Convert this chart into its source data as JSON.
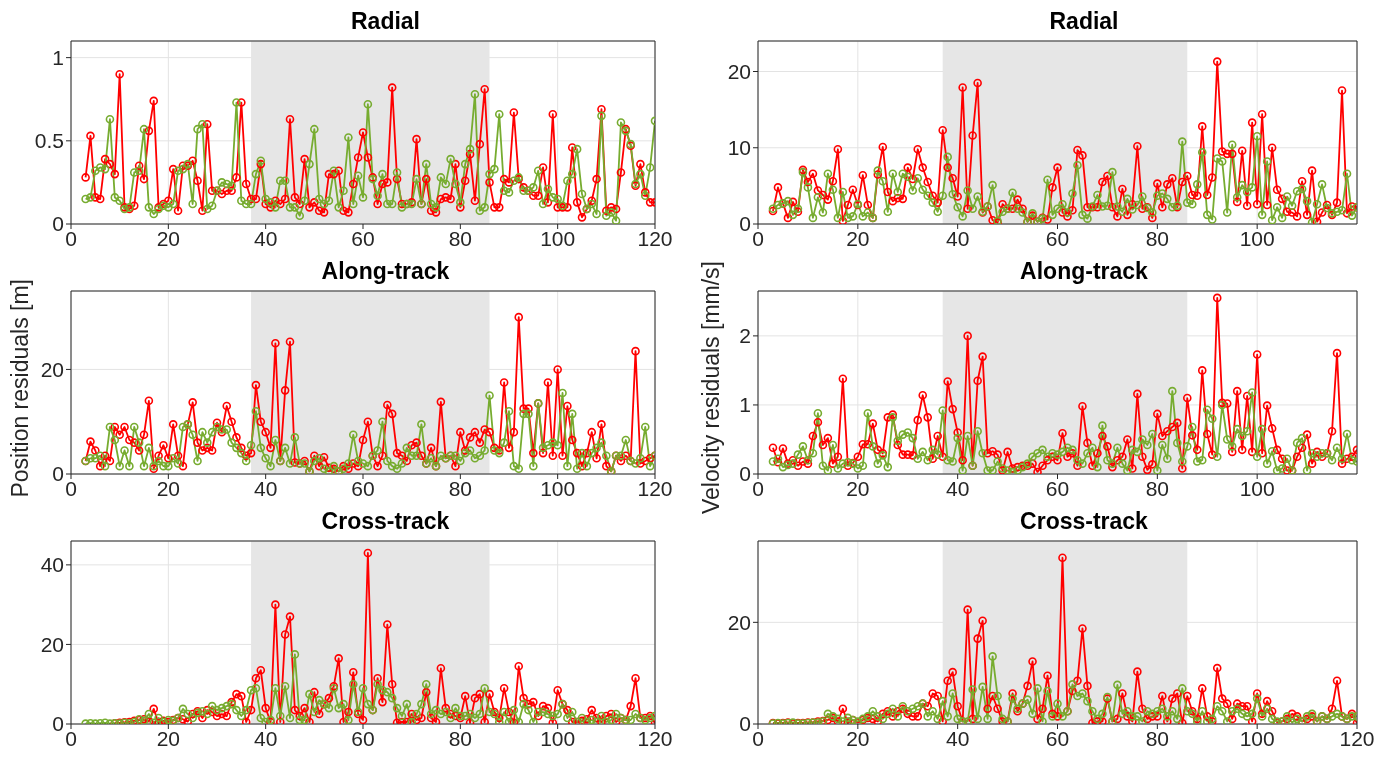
{
  "chart_data": [
    {
      "type": "line",
      "title": "Radial",
      "grid": true,
      "marker": "circle",
      "xlim": [
        0,
        120
      ],
      "xticks": [
        0,
        20,
        40,
        60,
        80,
        100,
        120
      ],
      "ylim": [
        0,
        1.1
      ],
      "yticks": [
        0,
        0.5,
        1
      ],
      "bands": [
        {
          "axis": "x",
          "from": 37,
          "to": 86,
          "color": "#e6e6e6"
        }
      ],
      "x": [
        3,
        4,
        5,
        6,
        7,
        8,
        9,
        10,
        11,
        12,
        13,
        14,
        15,
        16,
        17,
        18,
        19,
        20,
        21,
        22,
        23,
        24,
        25,
        26,
        27,
        28,
        29,
        30,
        31,
        32,
        33,
        34,
        35,
        36,
        37,
        38,
        39,
        40,
        41,
        42,
        43,
        44,
        45,
        46,
        47,
        48,
        49,
        50,
        51,
        52,
        53,
        54,
        55,
        56,
        57,
        58,
        59,
        60,
        61,
        62,
        63,
        64,
        65,
        66,
        67,
        68,
        69,
        70,
        71,
        72,
        73,
        74,
        75,
        76,
        77,
        78,
        79,
        80,
        81,
        82,
        83,
        84,
        85,
        86,
        87,
        88,
        89,
        90,
        91,
        92,
        93,
        94,
        95,
        96,
        97,
        98,
        99,
        100,
        101,
        102,
        103,
        104,
        105,
        106,
        107,
        108,
        109,
        110,
        111,
        112,
        113,
        114,
        115,
        116,
        117,
        118,
        119,
        120
      ],
      "series": [
        {
          "color": "#ff0000",
          "values": [
            0.28,
            0.53,
            0.16,
            0.15,
            0.39,
            0.36,
            0.3,
            0.9,
            0.1,
            0.09,
            0.11,
            0.35,
            0.27,
            0.56,
            0.74,
            0.1,
            0.12,
            0.14,
            0.33,
            0.08,
            0.35,
            0.35,
            0.38,
            0.26,
            0.08,
            0.6,
            0.2,
            0.2,
            0.18,
            0.2,
            0.2,
            0.28,
            0.73,
            0.24,
            0.15,
            0.15,
            0.36,
            0.12,
            0.1,
            0.14,
            0.12,
            0.15,
            0.63,
            0.16,
            0.12,
            0.39,
            0.1,
            0.13,
            0.08,
            0.07,
            0.3,
            0.3,
            0.32,
            0.08,
            0.07,
            0.24,
            0.4,
            0.55,
            0.4,
            0.28,
            0.12,
            0.24,
            0.25,
            0.82,
            0.27,
            0.12,
            0.12,
            0.13,
            0.51,
            0.12,
            0.27,
            0.08,
            0.07,
            0.15,
            0.16,
            0.15,
            0.36,
            0.1,
            0.26,
            0.42,
            0.14,
            0.48,
            0.81,
            0.25,
            0.1,
            0.1,
            0.27,
            0.25,
            0.67,
            0.27,
            0.22,
            0.2,
            0.17,
            0.17,
            0.34,
            0.13,
            0.66,
            0.1,
            0.1,
            0.1,
            0.46,
            0.13,
            0.04,
            0.09,
            0.14,
            0.27,
            0.69,
            0.08,
            0.1,
            0.09,
            0.31,
            0.57,
            0.47,
            0.23,
            0.36,
            0.19,
            0.13,
            0.13
          ]
        },
        {
          "color": "#77ac30",
          "values": [
            0.15,
            0.16,
            0.32,
            0.34,
            0.33,
            0.63,
            0.16,
            0.14,
            0.09,
            0.1,
            0.31,
            0.32,
            0.57,
            0.1,
            0.06,
            0.09,
            0.11,
            0.1,
            0.12,
            0.32,
            0.33,
            0.36,
            0.12,
            0.57,
            0.6,
            0.09,
            0.11,
            0.2,
            0.25,
            0.24,
            0.23,
            0.73,
            0.14,
            0.12,
            0.12,
            0.3,
            0.38,
            0.15,
            0.13,
            0.1,
            0.26,
            0.26,
            0.1,
            0.1,
            0.05,
            0.14,
            0.36,
            0.57,
            0.15,
            0.12,
            0.14,
            0.32,
            0.1,
            0.2,
            0.52,
            0.12,
            0.29,
            0.16,
            0.72,
            0.27,
            0.17,
            0.3,
            0.12,
            0.12,
            0.31,
            0.1,
            0.12,
            0.12,
            0.27,
            0.12,
            0.36,
            0.12,
            0.1,
            0.28,
            0.24,
            0.39,
            0.24,
            0.13,
            0.36,
            0.45,
            0.78,
            0.08,
            0.1,
            0.3,
            0.33,
            0.66,
            0.2,
            0.19,
            0.26,
            0.28,
            0.2,
            0.2,
            0.22,
            0.32,
            0.12,
            0.21,
            0.16,
            0.15,
            0.11,
            0.26,
            0.3,
            0.45,
            0.18,
            0.09,
            0.12,
            0.06,
            0.65,
            0.05,
            0.07,
            0.02,
            0.61,
            0.56,
            0.48,
            0.24,
            0.3,
            0.17,
            0.34,
            0.62
          ]
        }
      ]
    },
    {
      "type": "line",
      "title": "Radial",
      "grid": true,
      "marker": "circle",
      "xlim": [
        0,
        120
      ],
      "xticks": [
        0,
        20,
        40,
        60,
        80,
        100
      ],
      "ylim": [
        0,
        24
      ],
      "yticks": [
        0,
        10,
        20
      ],
      "bands": [
        {
          "axis": "x",
          "from": 37,
          "to": 86,
          "color": "#e6e6e6"
        }
      ],
      "x": [
        3,
        4,
        5,
        6,
        7,
        8,
        9,
        10,
        11,
        12,
        13,
        14,
        15,
        16,
        17,
        18,
        19,
        20,
        21,
        22,
        23,
        24,
        25,
        26,
        27,
        28,
        29,
        30,
        31,
        32,
        33,
        34,
        35,
        36,
        37,
        38,
        39,
        40,
        41,
        42,
        43,
        44,
        45,
        46,
        47,
        48,
        49,
        50,
        51,
        52,
        53,
        54,
        55,
        56,
        57,
        58,
        59,
        60,
        61,
        62,
        63,
        64,
        65,
        66,
        67,
        68,
        69,
        70,
        71,
        72,
        73,
        74,
        75,
        76,
        77,
        78,
        79,
        80,
        81,
        82,
        83,
        84,
        85,
        86,
        87,
        88,
        89,
        90,
        91,
        92,
        93,
        94,
        95,
        96,
        97,
        98,
        99,
        100,
        101,
        102,
        103,
        104,
        105,
        106,
        107,
        108,
        109,
        110,
        111,
        112,
        113,
        114,
        115,
        116,
        117,
        118,
        119,
        120
      ],
      "series": [
        {
          "color": "#ff0000",
          "values": [
            1.7,
            4.8,
            2.7,
            0.8,
            2.9,
            1.6,
            7.1,
            5.5,
            6.6,
            4.4,
            3.8,
            3.2,
            5.6,
            9.8,
            0.4,
            2.5,
            4.5,
            2.5,
            6.4,
            2.5,
            0.8,
            6.5,
            10.1,
            4.2,
            3.0,
            3.4,
            3.3,
            7.4,
            5.9,
            9.8,
            7.4,
            5.5,
            3.7,
            2.8,
            12.3,
            7.4,
            6.0,
            3.6,
            17.9,
            2.0,
            11.6,
            18.5,
            1.5,
            2.3,
            0.5,
            0.2,
            2.6,
            2.0,
            2.0,
            3.2,
            2.0,
            0.3,
            1.1,
            0.3,
            0.8,
            0.6,
            4.8,
            7.4,
            1.5,
            1.0,
            1.8,
            9.7,
            9.0,
            2.2,
            2.2,
            2.2,
            5.5,
            6.3,
            2.2,
            1.0,
            4.6,
            1.2,
            2.6,
            10.2,
            2.0,
            2.2,
            0.8,
            5.3,
            2.2,
            5.2,
            6.0,
            2.2,
            5.5,
            6.3,
            3.8,
            3.7,
            12.8,
            3.8,
            6.1,
            21.3,
            9.5,
            9.2,
            9.2,
            2.9,
            9.6,
            2.4,
            13.3,
            2.6,
            14.4,
            2.5,
            10.0,
            4.5,
            3.3,
            1.6,
            1.5,
            1.0,
            5.6,
            1.2,
            7.0,
            0.3,
            1.5,
            2.5,
            1.2,
            2.8,
            17.5,
            1.4,
            2.3,
            2.2
          ]
        },
        {
          "color": "#77ac30",
          "values": [
            2.0,
            2.5,
            2.7,
            3.0,
            1.2,
            2.0,
            6.8,
            4.8,
            0.8,
            3.5,
            1.5,
            6.6,
            4.5,
            0.8,
            4.2,
            0.8,
            1.0,
            2.6,
            1.0,
            1.5,
            0.8,
            7.0,
            5.6,
            1.6,
            6.6,
            4.2,
            6.6,
            6.2,
            4.4,
            6.0,
            4.5,
            3.7,
            2.8,
            1.6,
            3.7,
            8.8,
            3.9,
            2.2,
            1.0,
            4.4,
            2.0,
            3.6,
            1.6,
            2.3,
            5.1,
            0.4,
            1.6,
            2.0,
            4.1,
            2.0,
            1.5,
            0.3,
            1.4,
            0.3,
            0.7,
            5.8,
            1.2,
            2.0,
            2.6,
            1.5,
            4.0,
            7.7,
            1.2,
            0.7,
            2.3,
            3.8,
            2.3,
            2.4,
            6.8,
            2.3,
            1.6,
            3.3,
            1.9,
            2.5,
            3.6,
            2.1,
            1.5,
            3.7,
            4.0,
            3.3,
            2.2,
            2.4,
            10.8,
            2.8,
            2.6,
            5.2,
            9.4,
            1.2,
            0.6,
            8.6,
            8.2,
            1.5,
            10.4,
            3.5,
            5.1,
            4.2,
            4.8,
            11.5,
            1.2,
            8.2,
            0.5,
            2.2,
            0.8,
            3.6,
            2.4,
            4.3,
            4.6,
            3.0,
            0.2,
            2.6,
            5.2,
            2.1,
            1.4,
            1.6,
            1.8,
            6.6,
            1.1,
            2.2
          ]
        }
      ]
    },
    {
      "type": "line",
      "title": "Along-track",
      "ylabel": "Position residuals [m]",
      "grid": true,
      "marker": "circle",
      "xlim": [
        0,
        120
      ],
      "xticks": [
        0,
        20,
        40,
        60,
        80,
        100,
        120
      ],
      "ylim": [
        0,
        35
      ],
      "yticks": [
        0,
        20
      ],
      "bands": [
        {
          "axis": "x",
          "from": 37,
          "to": 86,
          "color": "#e6e6e6"
        }
      ],
      "x": [
        3,
        4,
        5,
        6,
        7,
        8,
        9,
        10,
        11,
        12,
        13,
        14,
        15,
        16,
        17,
        18,
        19,
        20,
        21,
        22,
        23,
        24,
        25,
        26,
        27,
        28,
        29,
        30,
        31,
        32,
        33,
        34,
        35,
        36,
        37,
        38,
        39,
        40,
        41,
        42,
        43,
        44,
        45,
        46,
        47,
        48,
        49,
        50,
        51,
        52,
        53,
        54,
        55,
        56,
        57,
        58,
        59,
        60,
        61,
        62,
        63,
        64,
        65,
        66,
        67,
        68,
        69,
        70,
        71,
        72,
        73,
        74,
        75,
        76,
        77,
        78,
        79,
        80,
        81,
        82,
        83,
        84,
        85,
        86,
        87,
        88,
        89,
        90,
        91,
        92,
        93,
        94,
        95,
        96,
        97,
        98,
        99,
        100,
        101,
        102,
        103,
        104,
        105,
        106,
        107,
        108,
        109,
        110,
        111,
        112,
        113,
        114,
        115,
        116,
        117,
        118,
        119,
        120
      ],
      "series": [
        {
          "color": "#ff0000",
          "values": [
            2.5,
            6.2,
            4.5,
            1.5,
            3.5,
            2.5,
            9.0,
            7.5,
            9.0,
            6.5,
            6.0,
            4.5,
            7.5,
            14.0,
            1.0,
            3.5,
            5.5,
            3.0,
            9.5,
            3.5,
            1.5,
            9.5,
            13.7,
            6.0,
            4.5,
            5.0,
            4.5,
            9.8,
            8.0,
            13.0,
            10.0,
            7.0,
            5.0,
            3.5,
            4.0,
            17.0,
            10.0,
            8.0,
            5.0,
            25.0,
            2.5,
            16.0,
            25.3,
            2.2,
            2.0,
            2.5,
            0.5,
            3.5,
            1.5,
            3.2,
            1.2,
            1.0,
            0.5,
            1.5,
            1.0,
            2.0,
            1.5,
            6.5,
            10.0,
            3.5,
            1.5,
            3.5,
            13.2,
            11.5,
            4.0,
            3.5,
            2.5,
            5.5,
            6.0,
            3.5,
            2.0,
            5.0,
            1.5,
            13.8,
            3.0,
            3.5,
            1.5,
            8.0,
            4.5,
            7.0,
            8.0,
            6.0,
            8.5,
            8.0,
            5.0,
            4.5,
            17.5,
            5.0,
            8.0,
            30.0,
            12.5,
            12.5,
            4.0,
            13.5,
            4.0,
            17.5,
            3.5,
            20.0,
            3.5,
            13.0,
            6.5,
            4.0,
            1.5,
            4.0,
            8.0,
            3.0,
            9.5,
            1.5,
            0.5,
            3.5,
            2.5,
            3.5,
            2.5,
            23.5,
            2.0,
            2.5,
            3.0,
            3.5
          ]
        },
        {
          "color": "#77ac30",
          "values": [
            2.5,
            3.0,
            3.0,
            3.5,
            1.5,
            9.0,
            6.5,
            1.5,
            4.5,
            1.5,
            9.0,
            6.0,
            1.5,
            5.0,
            1.5,
            2.5,
            1.5,
            1.5,
            3.0,
            2.0,
            9.0,
            9.5,
            7.5,
            2.5,
            8.0,
            6.0,
            8.0,
            9.0,
            8.5,
            8.5,
            6.0,
            5.0,
            4.0,
            2.5,
            5.5,
            12.0,
            5.0,
            3.0,
            1.5,
            6.5,
            2.5,
            5.0,
            2.0,
            7.0,
            2.0,
            2.0,
            0.5,
            2.5,
            3.0,
            1.0,
            0.5,
            1.5,
            0.5,
            1.0,
            2.0,
            7.5,
            2.5,
            2.0,
            1.5,
            3.5,
            4.5,
            10.0,
            2.5,
            1.5,
            1.0,
            2.0,
            5.0,
            3.5,
            3.5,
            9.5,
            2.0,
            3.0,
            1.5,
            3.5,
            3.0,
            3.5,
            3.5,
            2.5,
            4.0,
            4.5,
            3.0,
            3.5,
            4.5,
            15.0,
            4.5,
            4.0,
            6.0,
            12.0,
            1.5,
            1.0,
            11.5,
            11.5,
            1.5,
            13.5,
            5.0,
            5.5,
            6.0,
            5.5,
            15.5,
            1.5,
            11.5,
            1.0,
            4.0,
            1.5,
            4.0,
            5.0,
            6.0,
            3.5,
            0.5,
            3.5,
            3.5,
            6.5,
            2.5,
            2.0,
            3.0,
            9.0,
            1.5,
            3.5
          ]
        }
      ]
    },
    {
      "type": "line",
      "title": "Along-track",
      "ylabel": "Velocity residuals [mm/s]",
      "grid": true,
      "marker": "circle",
      "xlim": [
        0,
        120
      ],
      "xticks": [
        0,
        20,
        40,
        60,
        80,
        100
      ],
      "ylim": [
        0,
        2.65
      ],
      "yticks": [
        0,
        1,
        2
      ],
      "bands": [
        {
          "axis": "x",
          "from": 37,
          "to": 86,
          "color": "#e6e6e6"
        }
      ],
      "x": [
        3,
        4,
        5,
        6,
        7,
        8,
        9,
        10,
        11,
        12,
        13,
        14,
        15,
        16,
        17,
        18,
        19,
        20,
        21,
        22,
        23,
        24,
        25,
        26,
        27,
        28,
        29,
        30,
        31,
        32,
        33,
        34,
        35,
        36,
        37,
        38,
        39,
        40,
        41,
        42,
        43,
        44,
        45,
        46,
        47,
        48,
        49,
        50,
        51,
        52,
        53,
        54,
        55,
        56,
        57,
        58,
        59,
        60,
        61,
        62,
        63,
        64,
        65,
        66,
        67,
        68,
        69,
        70,
        71,
        72,
        73,
        74,
        75,
        76,
        77,
        78,
        79,
        80,
        81,
        82,
        83,
        84,
        85,
        86,
        87,
        88,
        89,
        90,
        91,
        92,
        93,
        94,
        95,
        96,
        97,
        98,
        99,
        100,
        101,
        102,
        103,
        104,
        105,
        106,
        107,
        108,
        109,
        110,
        111,
        112,
        113,
        114,
        115,
        116,
        117,
        118,
        119,
        120
      ],
      "series": [
        {
          "color": "#ff0000",
          "values": [
            0.38,
            0.17,
            0.37,
            0.15,
            0.2,
            0.12,
            0.18,
            0.15,
            0.55,
            0.75,
            0.42,
            0.52,
            0.15,
            0.25,
            1.38,
            0.12,
            0.16,
            0.25,
            0.43,
            0.43,
            0.73,
            0.35,
            0.3,
            0.82,
            0.86,
            0.42,
            0.28,
            0.28,
            0.27,
            0.78,
            1.14,
            0.82,
            0.22,
            0.55,
            0.25,
            1.34,
            0.94,
            0.6,
            0.2,
            2.0,
            0.12,
            1.35,
            1.7,
            0.3,
            0.33,
            0.28,
            0.05,
            0.32,
            0.08,
            0.1,
            0.12,
            0.12,
            0.15,
            0.03,
            0.12,
            0.2,
            0.25,
            0.2,
            0.59,
            0.25,
            0.3,
            0.12,
            0.98,
            0.45,
            0.12,
            0.3,
            0.55,
            0.4,
            0.1,
            0.2,
            0.25,
            0.5,
            0.08,
            1.16,
            0.25,
            0.06,
            0.14,
            0.87,
            0.55,
            0.62,
            0.68,
            0.74,
            0.08,
            1.1,
            0.56,
            0.35,
            1.5,
            0.58,
            0.28,
            2.55,
            1.03,
            1.02,
            0.32,
            1.2,
            0.35,
            1.13,
            0.32,
            1.73,
            0.3,
            0.99,
            0.66,
            0.35,
            0.22,
            0.05,
            0.05,
            0.25,
            0.38,
            0.57,
            0.15,
            0.32,
            0.25,
            0.3,
            0.62,
            1.75,
            0.15,
            0.22,
            0.25,
            0.35
          ]
        },
        {
          "color": "#77ac30",
          "values": [
            0.18,
            0.22,
            0.1,
            0.13,
            0.15,
            0.28,
            0.4,
            0.2,
            0.3,
            0.88,
            0.12,
            0.05,
            0.42,
            0.08,
            0.15,
            0.17,
            0.15,
            0.08,
            0.12,
            0.88,
            0.4,
            0.15,
            0.27,
            0.1,
            0.82,
            0.48,
            0.57,
            0.6,
            0.52,
            0.22,
            0.32,
            0.2,
            0.35,
            0.28,
            0.92,
            0.2,
            0.18,
            0.52,
            0.05,
            0.55,
            0.12,
            0.62,
            0.3,
            0.05,
            0.05,
            0.18,
            0.08,
            0.05,
            0.03,
            0.05,
            0.1,
            0.15,
            0.25,
            0.3,
            0.35,
            0.25,
            0.3,
            0.28,
            0.32,
            0.38,
            0.35,
            0.2,
            0.15,
            0.3,
            0.38,
            0.1,
            0.7,
            0.2,
            0.15,
            0.38,
            0.15,
            0.05,
            0.35,
            0.32,
            0.5,
            0.42,
            0.58,
            0.05,
            0.42,
            0.22,
            1.2,
            0.45,
            0.18,
            0.4,
            0.68,
            0.18,
            0.2,
            0.93,
            0.8,
            0.25,
            1.0,
            0.5,
            0.4,
            0.65,
            0.55,
            0.62,
            1.18,
            0.25,
            0.65,
            0.15,
            0.33,
            0.05,
            0.08,
            0.22,
            0.05,
            0.45,
            0.52,
            0.05,
            0.3,
            0.25,
            0.3,
            0.3,
            0.2,
            0.38,
            0.22,
            0.58,
            0.2,
            0.18
          ]
        }
      ]
    },
    {
      "type": "line",
      "title": "Cross-track",
      "grid": true,
      "marker": "circle",
      "xlim": [
        0,
        120
      ],
      "xticks": [
        0,
        20,
        40,
        60,
        80,
        100,
        120
      ],
      "ylim": [
        0,
        46
      ],
      "yticks": [
        0,
        20,
        40
      ],
      "bands": [
        {
          "axis": "x",
          "from": 37,
          "to": 86,
          "color": "#e6e6e6"
        }
      ],
      "x": [
        3,
        4,
        5,
        6,
        7,
        8,
        9,
        10,
        11,
        12,
        13,
        14,
        15,
        16,
        17,
        18,
        19,
        20,
        21,
        22,
        23,
        24,
        25,
        26,
        27,
        28,
        29,
        30,
        31,
        32,
        33,
        34,
        35,
        36,
        37,
        38,
        39,
        40,
        41,
        42,
        43,
        44,
        45,
        46,
        47,
        48,
        49,
        50,
        51,
        52,
        53,
        54,
        55,
        56,
        57,
        58,
        59,
        60,
        61,
        62,
        63,
        64,
        65,
        66,
        67,
        68,
        69,
        70,
        71,
        72,
        73,
        74,
        75,
        76,
        77,
        78,
        79,
        80,
        81,
        82,
        83,
        84,
        85,
        86,
        87,
        88,
        89,
        90,
        91,
        92,
        93,
        94,
        95,
        96,
        97,
        98,
        99,
        100,
        101,
        102,
        103,
        104,
        105,
        106,
        107,
        108,
        109,
        110,
        111,
        112,
        113,
        114,
        115,
        116,
        117,
        118,
        119,
        120
      ],
      "series": [
        {
          "color": "#ff0000",
          "values": [
            null,
            null,
            null,
            null,
            null,
            null,
            0.2,
            0.3,
            0.4,
            0.5,
            0.8,
            1,
            1.2,
            0.6,
            3.8,
            0.2,
            0.8,
            0.5,
            1,
            1.5,
            1.2,
            0.6,
            2.5,
            3.2,
            1.5,
            3.5,
            3,
            2,
            2.5,
            2,
            5.5,
            7.5,
            7,
            0.5,
            3.5,
            11.5,
            13.5,
            4,
            0.5,
            30,
            0.5,
            22.5,
            27,
            3.5,
            2,
            4,
            0.5,
            8,
            2.5,
            5,
            6.5,
            9.5,
            16.5,
            0.5,
            3,
            13,
            2.5,
            1,
            43,
            3.5,
            11.5,
            5.5,
            25,
            10,
            0.3,
            0.5,
            0.5,
            2.5,
            1,
            1.5,
            8,
            1.5,
            0.5,
            14,
            4,
            2.5,
            2,
            1.5,
            7,
            0.3,
            6.5,
            7.5,
            0.5,
            7.5,
            3,
            1.5,
            9,
            3,
            0.3,
            14.5,
            6.5,
            5,
            5.5,
            2,
            4.5,
            4,
            0.3,
            8.5,
            5,
            3.5,
            0.5,
            0.5,
            0.8,
            1.2,
            3.5,
            1.5,
            0.5,
            2,
            2.5,
            0.5,
            1.5,
            1,
            4.5,
            11.5,
            1.5,
            1.5,
            2,
            0.2
          ]
        },
        {
          "color": "#77ac30",
          "values": [
            0.1,
            0.2,
            0.1,
            0.2,
            0.3,
            0.1,
            0.2,
            0.1,
            0.3,
            0.2,
            0.5,
            1.2,
            0.8,
            2.5,
            0.3,
            1.5,
            0.5,
            1,
            0.8,
            1.5,
            3.8,
            2.5,
            1.5,
            2.8,
            3.2,
            2.5,
            4.5,
            3.5,
            4,
            4.5,
            5,
            3.5,
            2,
            3.5,
            8.5,
            9,
            1.5,
            0.5,
            1,
            9,
            2,
            9.5,
            1.5,
            17.5,
            1,
            1,
            7.5,
            3,
            6,
            5,
            4,
            9,
            4,
            5,
            1,
            10,
            3,
            9,
            5,
            3.5,
            10,
            8.5,
            8,
            6.5,
            4,
            2,
            5,
            0.5,
            2.5,
            5,
            10,
            2.5,
            3.5,
            2.5,
            3,
            1.5,
            4,
            2,
            2,
            2.5,
            1.5,
            2.5,
            9,
            3,
            2.5,
            0.5,
            3,
            0.5,
            3.5,
            0.5,
            5,
            3.5,
            0.5,
            3,
            3,
            2.5,
            2,
            2.5,
            5,
            1.5,
            3,
            0.5,
            1.5,
            0.5,
            1,
            0.5,
            2,
            0.5,
            1,
            2.5,
            1.5,
            1,
            1,
            2.5,
            1.5,
            1,
            1.5,
            2
          ]
        }
      ]
    },
    {
      "type": "line",
      "title": "Cross-track",
      "grid": true,
      "marker": "circle",
      "xlim": [
        0,
        120
      ],
      "xticks": [
        0,
        20,
        40,
        60,
        80,
        100,
        120
      ],
      "ylim": [
        0,
        36
      ],
      "yticks": [
        0,
        20
      ],
      "bands": [
        {
          "axis": "x",
          "from": 37,
          "to": 86,
          "color": "#e6e6e6"
        }
      ],
      "x": [
        3,
        4,
        5,
        6,
        7,
        8,
        9,
        10,
        11,
        12,
        13,
        14,
        15,
        16,
        17,
        18,
        19,
        20,
        21,
        22,
        23,
        24,
        25,
        26,
        27,
        28,
        29,
        30,
        31,
        32,
        33,
        34,
        35,
        36,
        37,
        38,
        39,
        40,
        41,
        42,
        43,
        44,
        45,
        46,
        47,
        48,
        49,
        50,
        51,
        52,
        53,
        54,
        55,
        56,
        57,
        58,
        59,
        60,
        61,
        62,
        63,
        64,
        65,
        66,
        67,
        68,
        69,
        70,
        71,
        72,
        73,
        74,
        75,
        76,
        77,
        78,
        79,
        80,
        81,
        82,
        83,
        84,
        85,
        86,
        87,
        88,
        89,
        90,
        91,
        92,
        93,
        94,
        95,
        96,
        97,
        98,
        99,
        100,
        101,
        102,
        103,
        104,
        105,
        106,
        107,
        108,
        109,
        110,
        111,
        112,
        113,
        114,
        115,
        116,
        117,
        118,
        119,
        120
      ],
      "series": [
        {
          "color": "#ff0000",
          "values": [
            0.2,
            0.1,
            0.2,
            0.3,
            0.1,
            0.2,
            0.2,
            0.3,
            0.3,
            0.5,
            0.6,
            0.8,
            1.2,
            0.5,
            3,
            0.2,
            0.8,
            0.3,
            0.8,
            1.2,
            1,
            0.5,
            2,
            2.5,
            1.5,
            2.5,
            3,
            2,
            1.5,
            1.5,
            4,
            3.5,
            6,
            5.5,
            0.5,
            8.5,
            10.2,
            3.5,
            0.5,
            22.5,
            1,
            16.8,
            20.3,
            3,
            5.5,
            3,
            0.5,
            0.5,
            6,
            2.5,
            4,
            7.5,
            12.3,
            1,
            3,
            9.5,
            2,
            1.5,
            32.7,
            2.5,
            6.5,
            8.5,
            18.8,
            7.5,
            0.2,
            0.5,
            0.5,
            5,
            0.5,
            1,
            6,
            1.5,
            0.5,
            10.3,
            3,
            1,
            1.5,
            1.5,
            5.5,
            0.5,
            5,
            6,
            0.2,
            5.5,
            2.5,
            1,
            7,
            1.5,
            0.5,
            11,
            5,
            4,
            1,
            4,
            3.5,
            3.5,
            0.5,
            6,
            2,
            4.5,
            2.5,
            0.3,
            0.5,
            1,
            2,
            1.5,
            0.5,
            1,
            1.5,
            0.5,
            1.5,
            1,
            3,
            8.5,
            1.5,
            1,
            2,
            0.2
          ]
        },
        {
          "color": "#77ac30",
          "values": [
            0.1,
            0.2,
            0.1,
            0.2,
            0.3,
            0.1,
            0.1,
            0.2,
            0.3,
            0.3,
            0.5,
            2,
            1.5,
            1,
            0.5,
            1.2,
            0.8,
            0.5,
            1,
            1.5,
            2.5,
            1.5,
            1,
            2,
            3,
            1.5,
            3.5,
            2.5,
            3,
            3.5,
            4,
            1.5,
            2.5,
            1,
            4.5,
            1.5,
            6,
            1,
            0.5,
            0.5,
            6.8,
            1,
            7.3,
            1,
            13.3,
            5.5,
            1,
            0.5,
            5,
            3,
            4,
            4.8,
            2,
            7,
            0.5,
            6.5,
            1.5,
            4,
            1.5,
            2.5,
            7.8,
            5.5,
            6,
            4.5,
            2.5,
            1,
            2,
            5.3,
            0.5,
            7.7,
            2,
            2.5,
            1.5,
            1.5,
            0.5,
            2.5,
            2,
            2.5,
            3,
            1.5,
            2.5,
            1,
            7,
            2.5,
            2,
            0.5,
            2.5,
            0.5,
            1,
            3.5,
            2.5,
            0.5,
            2.5,
            3,
            2,
            1.5,
            2,
            5,
            1.5,
            3,
            1,
            0.5,
            0.5,
            1.5,
            0.3,
            1,
            0.5,
            1.5,
            2,
            0.5,
            1.5,
            1,
            1.5,
            2,
            1.5,
            1,
            1.5,
            1.5
          ]
        }
      ]
    }
  ]
}
